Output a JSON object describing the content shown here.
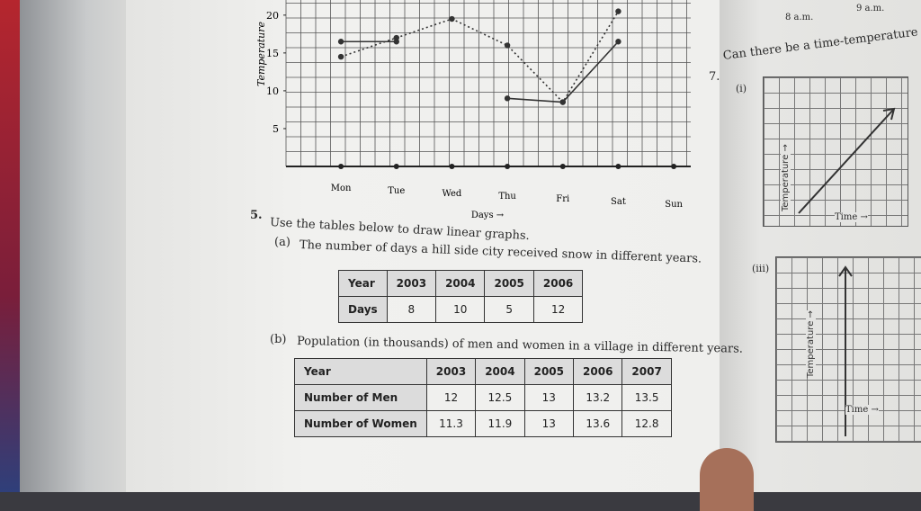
{
  "graph": {
    "y_label": "Temperature",
    "x_label": "Days →",
    "days": [
      "Mon",
      "Tue",
      "Wed",
      "Thu",
      "Fri",
      "Sat",
      "Sun"
    ],
    "ylim": [
      0,
      22
    ],
    "yticks": [
      5,
      10,
      15,
      20
    ],
    "series": [
      {
        "style": "solid",
        "values": [
          16.5,
          16.5,
          null,
          9,
          8.5,
          16.5,
          null
        ]
      },
      {
        "style": "dotted",
        "values": [
          14.5,
          17,
          19.5,
          16,
          8.5,
          20.5,
          null
        ]
      }
    ]
  },
  "question5": {
    "number": "5.",
    "text": "Use the tables below to draw linear graphs.",
    "part_a": {
      "label": "(a)",
      "text": "The number of days a hill side city received snow in different years.",
      "table": {
        "rows": [
          [
            "Year",
            "2003",
            "2004",
            "2005",
            "2006"
          ],
          [
            "Days",
            "8",
            "10",
            "5",
            "12"
          ]
        ]
      }
    },
    "part_b": {
      "label": "(b)",
      "text": "Population (in thousands) of men and women in a village in different years.",
      "table": {
        "rows": [
          [
            "Year",
            "2003",
            "2004",
            "2005",
            "2006",
            "2007"
          ],
          [
            "Number of Men",
            "12",
            "12.5",
            "13",
            "13.2",
            "13.5"
          ],
          [
            "Number of Women",
            "11.3",
            "11.9",
            "13",
            "13.6",
            "12.8"
          ]
        ]
      }
    }
  },
  "right_page": {
    "time1": "8 a.m.",
    "time2": "9 a.m.",
    "question7": {
      "number": "7.",
      "text": "Can there be a time-temperature gr"
    },
    "graph_i": {
      "label": "(i)",
      "y_label": "Temperature →",
      "x_label": "Time →"
    },
    "graph_iii": {
      "label": "(iii)",
      "y_label": "Temperature →",
      "x_label": "Time →"
    }
  }
}
